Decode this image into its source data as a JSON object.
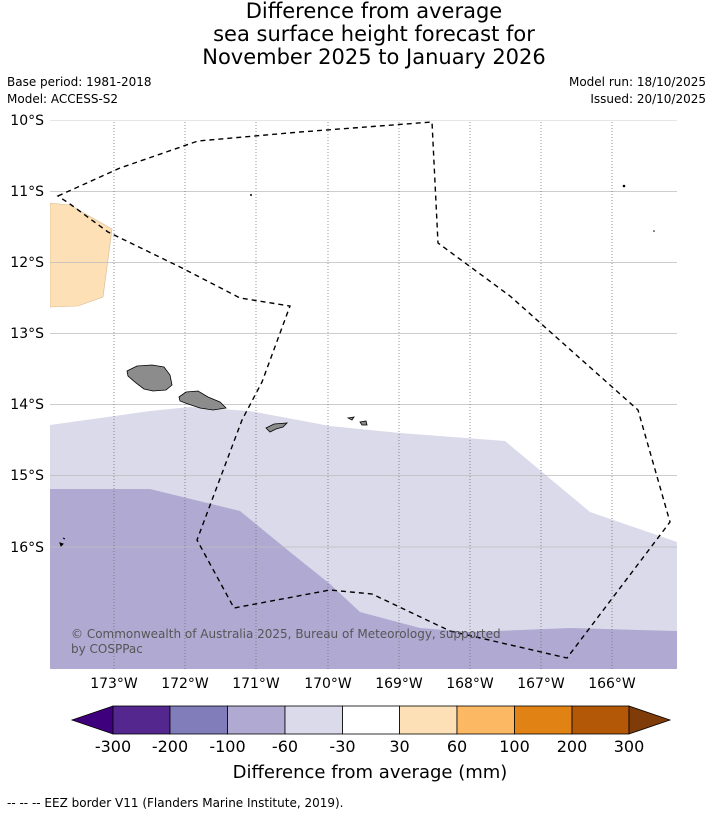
{
  "title": {
    "line1": "Difference from average",
    "line2": "sea surface height forecast for",
    "line3": "November 2025 to January 2026"
  },
  "meta": {
    "base_period": "Base period: 1981-2018",
    "model": "Model: ACCESS-S2",
    "model_run": "Model run: 18/10/2025",
    "issued": "Issued: 20/10/2025"
  },
  "map": {
    "lat_labels": [
      "10°S",
      "11°S",
      "12°S",
      "13°S",
      "14°S",
      "15°S",
      "16°S"
    ],
    "lon_labels": [
      "173°W",
      "172°W",
      "171°W",
      "170°W",
      "169°W",
      "168°W",
      "167°W",
      "166°W"
    ],
    "copyright_line1": "© Commonwealth of Australia 2025, Bureau of Meteorology, supported",
    "copyright_line2": "by COSPPac"
  },
  "colorbar": {
    "title": "Difference from average (mm)",
    "tick_labels": [
      "-300",
      "-200",
      "-100",
      "-60",
      "-30",
      "30",
      "60",
      "100",
      "200",
      "300"
    ],
    "colors": [
      "#3f007d",
      "#54278f",
      "#807dba",
      "#b0aad2",
      "#dadaeb",
      "#ffffff",
      "#fee0b6",
      "#fdb863",
      "#e08214",
      "#b35806",
      "#7f3b08"
    ]
  },
  "footnote": "-- -- -- EEZ border V11 (Flanders Marine Institute, 2019)."
}
